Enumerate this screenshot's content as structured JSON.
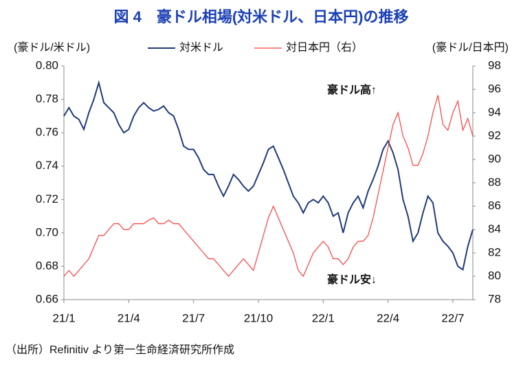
{
  "chart_data": {
    "type": "line",
    "title": "図 4　豪ドル相場(対米ドル、日本円)の推移",
    "ylabel": "(豪ドル/米ドル)",
    "y2label": "(豪ドル/日本円)",
    "annotations": [
      "豪ドル高↑",
      "豪ドル安↓"
    ],
    "source": "（出所）Refinitiv より第一生命経済研究所作成",
    "categories": [
      "21/1",
      null,
      null,
      null,
      null,
      null,
      null,
      null,
      null,
      null,
      null,
      null,
      null,
      "21/4",
      null,
      null,
      null,
      null,
      null,
      null,
      null,
      null,
      null,
      null,
      null,
      null,
      "21/7",
      null,
      null,
      null,
      null,
      null,
      null,
      null,
      null,
      null,
      null,
      null,
      null,
      "21/10",
      null,
      null,
      null,
      null,
      null,
      null,
      null,
      null,
      null,
      null,
      null,
      null,
      "22/1",
      null,
      null,
      null,
      null,
      null,
      null,
      null,
      null,
      null,
      null,
      null,
      null,
      "22/4",
      null,
      null,
      null,
      null,
      null,
      null,
      null,
      null,
      null,
      null,
      null,
      null,
      "22/7",
      null,
      null,
      null,
      null
    ],
    "series": [
      {
        "name": "対米ドル",
        "color": "#1f3a7a",
        "axis": "y",
        "values": [
          0.77,
          0.775,
          0.77,
          0.768,
          0.762,
          0.772,
          0.78,
          0.79,
          0.778,
          0.775,
          0.772,
          0.765,
          0.76,
          0.762,
          0.77,
          0.775,
          0.778,
          0.775,
          0.773,
          0.774,
          0.776,
          0.772,
          0.77,
          0.762,
          0.752,
          0.75,
          0.75,
          0.745,
          0.738,
          0.735,
          0.735,
          0.728,
          0.722,
          0.728,
          0.735,
          0.732,
          0.728,
          0.725,
          0.728,
          0.735,
          0.742,
          0.75,
          0.752,
          0.745,
          0.738,
          0.73,
          0.722,
          0.718,
          0.712,
          0.718,
          0.72,
          0.718,
          0.722,
          0.718,
          0.71,
          0.712,
          0.7,
          0.712,
          0.718,
          0.722,
          0.715,
          0.725,
          0.732,
          0.74,
          0.75,
          0.755,
          0.748,
          0.738,
          0.72,
          0.71,
          0.695,
          0.7,
          0.712,
          0.722,
          0.718,
          0.7,
          0.695,
          0.692,
          0.688,
          0.68,
          0.678,
          0.692,
          0.702
        ]
      },
      {
        "name": "対日本円（右）",
        "color": "#ff3b3b",
        "axis": "y2",
        "values": [
          80.0,
          80.5,
          80.0,
          80.5,
          81.0,
          81.5,
          82.5,
          83.5,
          83.5,
          84.0,
          84.5,
          84.5,
          84.0,
          84.0,
          84.5,
          84.5,
          84.5,
          84.8,
          85.0,
          84.5,
          84.5,
          84.8,
          84.5,
          84.5,
          84.0,
          83.5,
          83.0,
          82.5,
          82.0,
          81.5,
          81.5,
          81.0,
          80.5,
          80.0,
          80.5,
          81.0,
          81.5,
          81.0,
          80.5,
          82.0,
          83.5,
          85.0,
          86.0,
          85.0,
          84.0,
          83.0,
          82.0,
          80.5,
          80.0,
          81.0,
          82.0,
          82.5,
          83.0,
          82.5,
          81.5,
          81.5,
          81.0,
          81.5,
          82.5,
          83.0,
          83.0,
          83.5,
          85.0,
          87.0,
          89.0,
          91.0,
          93.0,
          94.0,
          92.0,
          91.0,
          89.5,
          89.5,
          90.5,
          92.0,
          94.0,
          95.5,
          93.0,
          92.5,
          94.0,
          95.0,
          92.5,
          93.5,
          92.0
        ]
      }
    ],
    "ylim": [
      0.66,
      0.8
    ],
    "yticks": [
      0.66,
      0.68,
      {
        "value": 0.7,
        "label": "0.70"
      },
      0.72,
      0.74,
      0.76,
      0.78,
      {
        "value": 0.8,
        "label": "0.80"
      }
    ],
    "y2lim": [
      78,
      98
    ],
    "y2ticks": [
      78,
      80,
      82,
      84,
      86,
      88,
      90,
      92,
      94,
      96,
      98
    ],
    "grid": false
  }
}
